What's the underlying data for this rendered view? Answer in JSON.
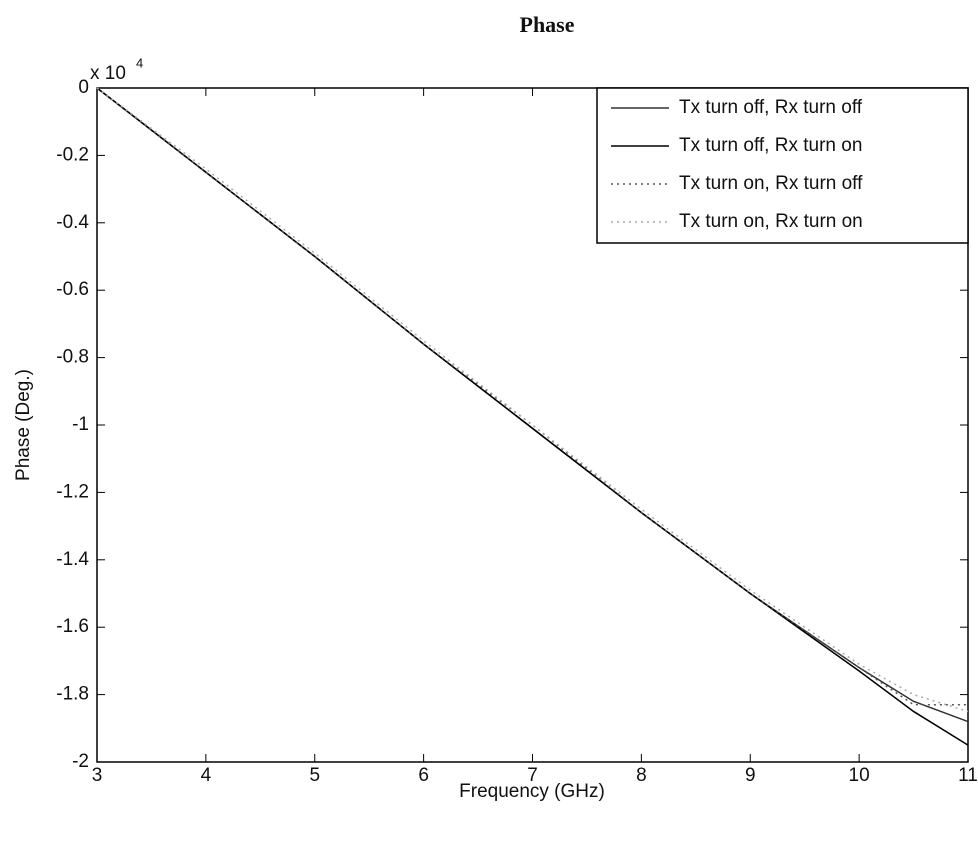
{
  "chart_data": {
    "type": "line",
    "title": "Phase",
    "x_label": "Frequency (GHz)",
    "y_label": "Phase (Deg.)",
    "y_multiplier": "x 10",
    "y_multiplier_exponent": "4",
    "x": [
      3,
      4,
      5,
      6,
      7,
      8,
      9,
      10,
      10.5,
      11
    ],
    "series": [
      {
        "name": "Tx turn off, Rx turn off",
        "color": "#333333",
        "line_style": "solid",
        "values": [
          0,
          -0.25,
          -0.5,
          -0.76,
          -1.01,
          -1.26,
          -1.5,
          -1.72,
          -1.82,
          -1.88
        ]
      },
      {
        "name": "Tx turn off, Rx turn on",
        "color": "#000000",
        "line_style": "solid",
        "values": [
          0,
          -0.25,
          -0.5,
          -0.76,
          -1.01,
          -1.26,
          -1.5,
          -1.73,
          -1.85,
          -1.95
        ]
      },
      {
        "name": "Tx turn on, Rx turn off",
        "color": "#555555",
        "line_style": "dotted",
        "values": [
          0,
          -0.25,
          -0.5,
          -0.76,
          -1.0,
          -1.26,
          -1.5,
          -1.72,
          -1.83,
          -1.83
        ]
      },
      {
        "name": "Tx turn on, Rx turn on",
        "color": "#aaaaaa",
        "line_style": "dotted",
        "values": [
          0,
          -0.24,
          -0.49,
          -0.75,
          -1.0,
          -1.25,
          -1.49,
          -1.71,
          -1.8,
          -1.85
        ]
      }
    ],
    "xlim": [
      3,
      11
    ],
    "xticks": [
      3,
      4,
      5,
      6,
      7,
      8,
      9,
      10,
      11
    ],
    "ylim": [
      -2,
      0
    ],
    "yticks": [
      0,
      -0.2,
      -0.4,
      -0.6,
      -0.8,
      -1,
      -1.2,
      -1.4,
      -1.6,
      -1.8,
      -2
    ],
    "grid": false,
    "legend": "upper right"
  }
}
